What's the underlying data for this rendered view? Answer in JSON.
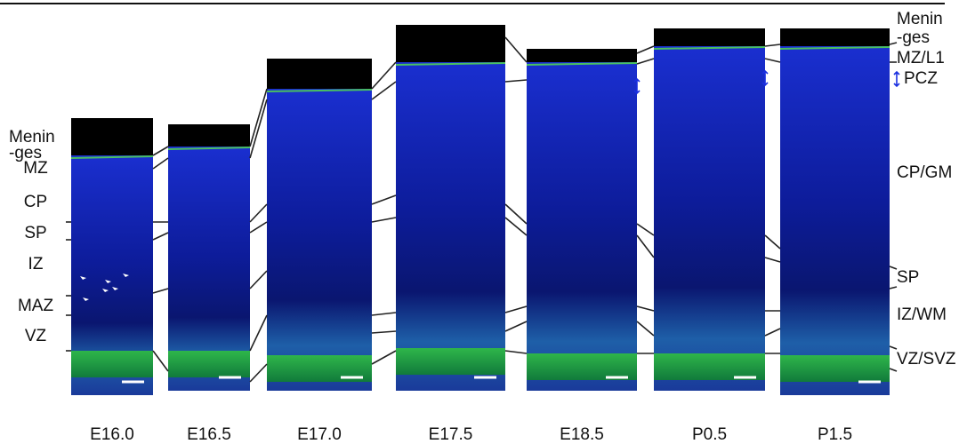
{
  "panels": [
    {
      "label": "E16.0"
    },
    {
      "label": "E16.5"
    },
    {
      "label": "E17.0"
    },
    {
      "label": "E17.5"
    },
    {
      "label": "E18.5"
    },
    {
      "label": "P0.5"
    },
    {
      "label": "P1.5"
    }
  ],
  "left_labels": [
    "Menin",
    "-ges",
    "MZ",
    "CP",
    "SP",
    "IZ",
    "MAZ",
    "VZ"
  ],
  "right_labels": [
    "Menin",
    "-ges",
    "MZ/L1",
    "PCZ",
    "CP/GM",
    "SP",
    "IZ/WM",
    "VZ/SVZ"
  ]
}
